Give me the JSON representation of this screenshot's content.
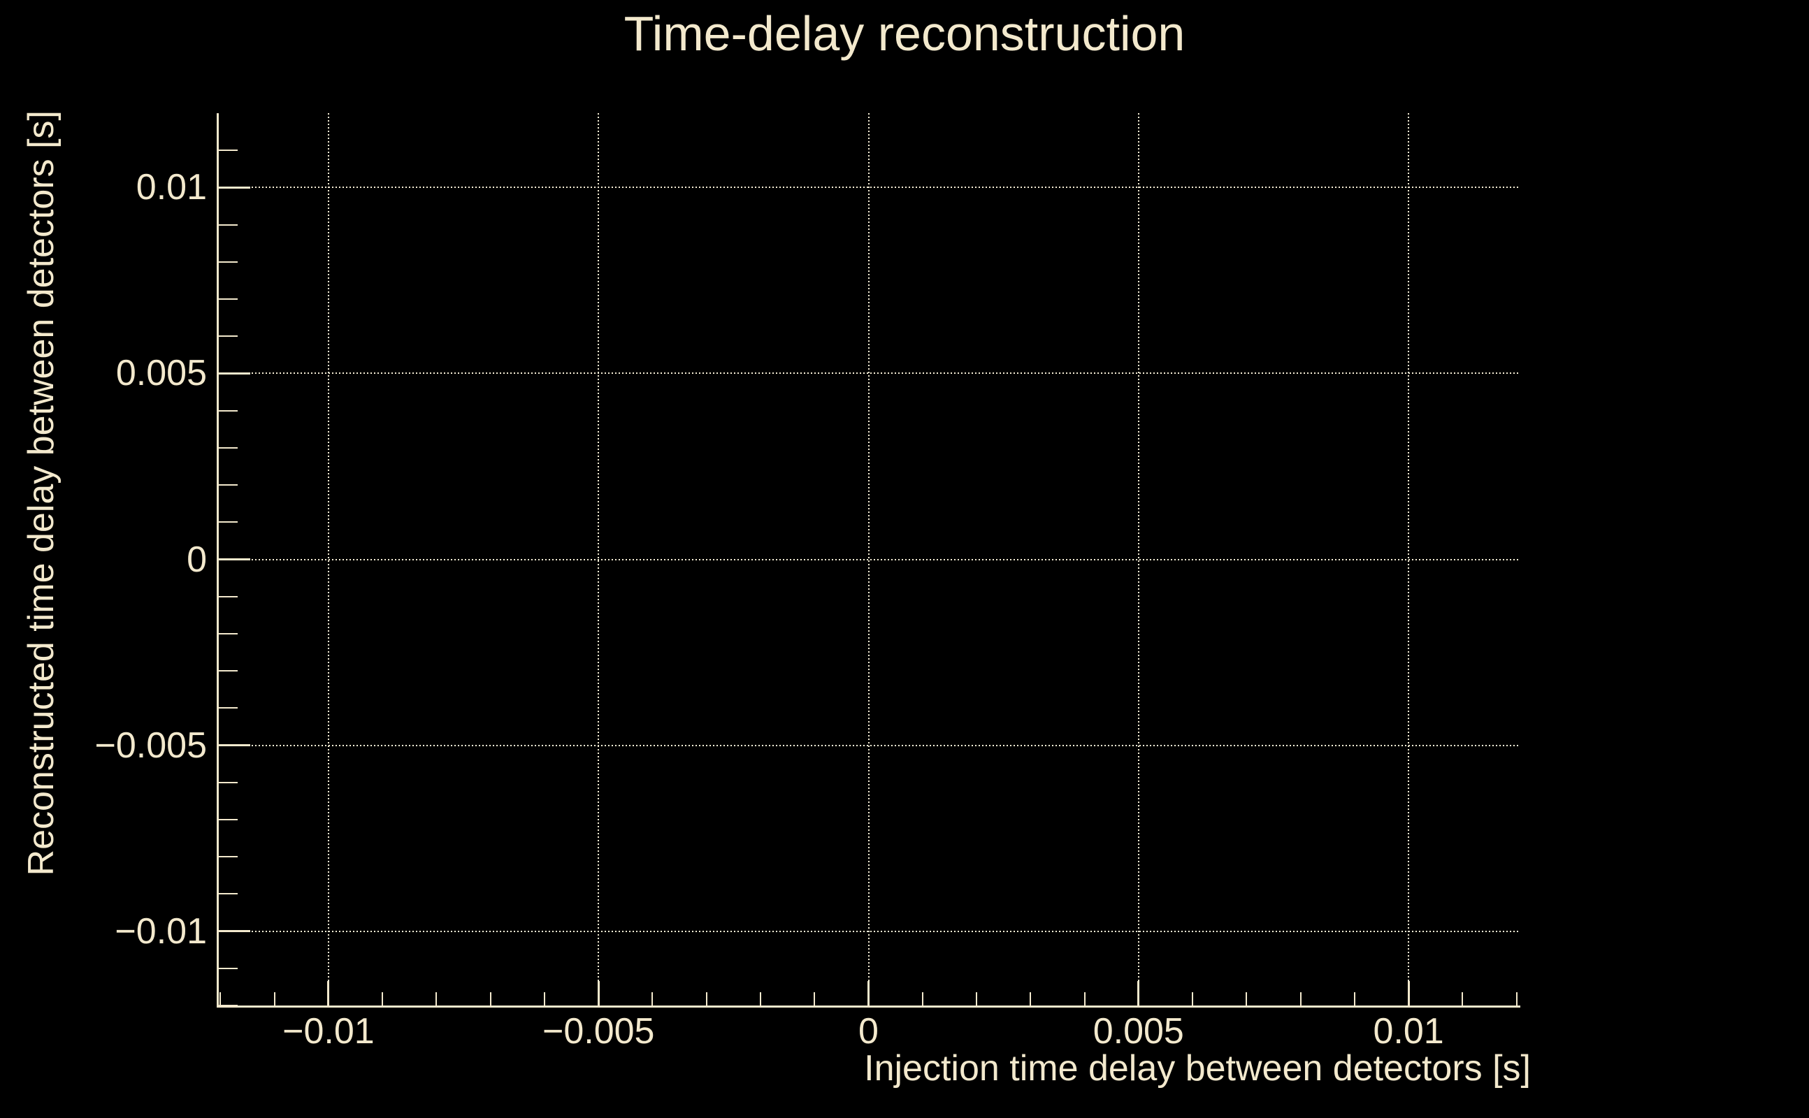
{
  "chart_data": {
    "type": "scatter",
    "title": "Time-delay reconstruction",
    "xlabel": "Injection time delay between detectors [s]",
    "ylabel": "Reconstructed time delay between detectors [s]",
    "xlim": [
      -0.01207,
      0.01207
    ],
    "ylim": [
      -0.012,
      0.012
    ],
    "x_major_ticks": [
      -0.01,
      -0.005,
      0,
      0.005,
      0.01
    ],
    "x_major_labels": [
      "−0.01",
      "−0.005",
      "0",
      "0.005",
      "0.01"
    ],
    "y_major_ticks": [
      0.01,
      0.005,
      0,
      -0.005,
      -0.01
    ],
    "y_major_labels": [
      "0.01",
      "0.005",
      "0",
      "−0.005",
      "−0.01"
    ],
    "minor_tick_step": 0.001,
    "grid": true,
    "grid_style": "dotted",
    "legend_position": "none",
    "series": [],
    "colors": {
      "background": "#000000",
      "foreground": "#f3e9cd",
      "gridline": "#f6eed6"
    }
  }
}
